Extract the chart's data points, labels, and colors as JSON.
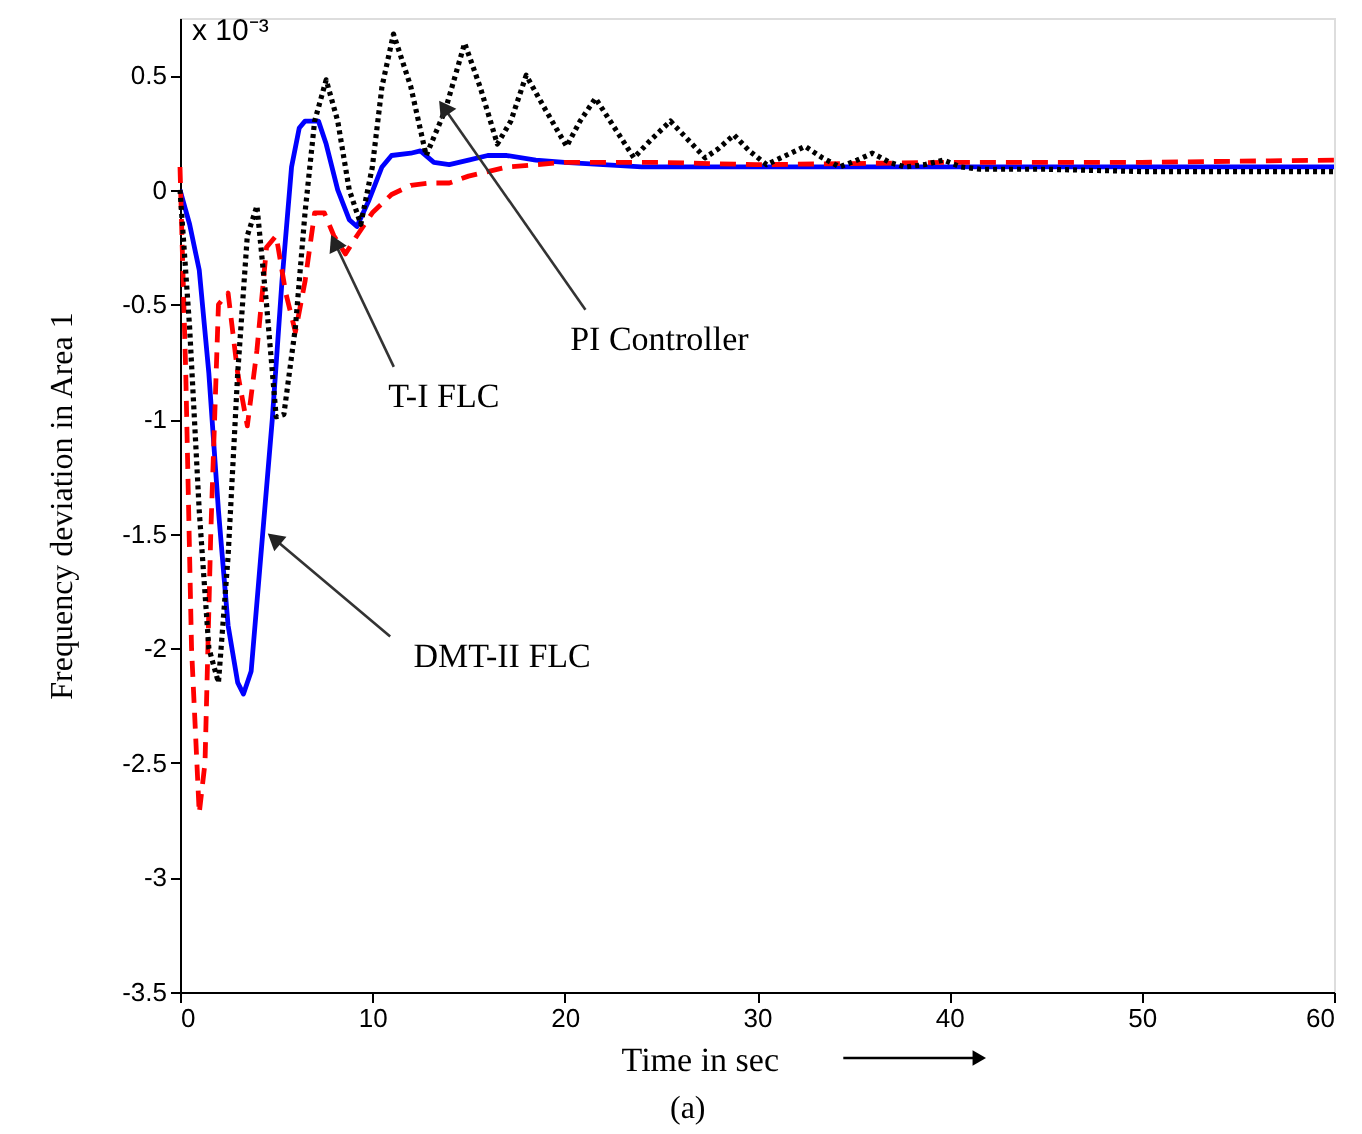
{
  "chart_data": {
    "type": "line",
    "xlabel": "Time in sec",
    "ylabel": "Frequency deviation in Area 1",
    "xlim": [
      0,
      60
    ],
    "xticks": [
      0,
      10,
      20,
      30,
      40,
      50,
      60
    ],
    "ylim": [
      -3.5,
      0.75
    ],
    "yticks": [
      -3.5,
      -3,
      -2.5,
      -2,
      -1.5,
      -1,
      -0.5,
      0,
      0.5
    ],
    "grid": false,
    "marker": "none",
    "series": [
      {
        "color": "#0000ff",
        "line_style": "solid",
        "x": [
          0,
          0.5,
          1,
          1.5,
          2,
          2.5,
          3,
          3.3,
          3.7,
          4.2,
          4.8,
          5.3,
          5.8,
          6.2,
          6.5,
          7.2,
          7.6,
          8.2,
          8.8,
          9.2,
          9.8,
          10.5,
          11,
          12,
          12.5,
          13.2,
          14,
          15,
          16,
          17,
          18.5,
          20,
          22,
          24,
          30,
          40,
          50,
          60
        ],
        "values": [
          0,
          -0.15,
          -0.35,
          -0.8,
          -1.4,
          -1.9,
          -2.15,
          -2.2,
          -2.1,
          -1.6,
          -1.0,
          -0.4,
          0.1,
          0.27,
          0.3,
          0.3,
          0.2,
          0.0,
          -0.13,
          -0.16,
          -0.05,
          0.1,
          0.15,
          0.16,
          0.17,
          0.12,
          0.11,
          0.13,
          0.15,
          0.15,
          0.13,
          0.12,
          0.11,
          0.1,
          0.1,
          0.1,
          0.1,
          0.1
        ]
      },
      {
        "color": "#ff0000",
        "line_style": "dashed",
        "x": [
          0,
          0.3,
          0.6,
          1,
          1.3,
          1.6,
          2,
          2.5,
          3,
          3.5,
          4,
          4.5,
          5,
          5.5,
          6,
          6.5,
          7,
          7.5,
          8,
          8.6,
          9.2,
          10,
          11,
          12,
          13,
          14,
          15,
          17,
          20,
          25,
          30,
          40,
          50,
          60
        ],
        "values": [
          0.1,
          -0.8,
          -2.0,
          -2.72,
          -2.5,
          -1.5,
          -0.5,
          -0.45,
          -0.8,
          -1.03,
          -0.7,
          -0.25,
          -0.2,
          -0.45,
          -0.62,
          -0.4,
          -0.1,
          -0.1,
          -0.2,
          -0.28,
          -0.2,
          -0.1,
          -0.02,
          0.02,
          0.03,
          0.03,
          0.06,
          0.1,
          0.12,
          0.12,
          0.11,
          0.12,
          0.12,
          0.13
        ]
      },
      {
        "color": "#000000",
        "line_style": "dotted",
        "x": [
          0,
          0.5,
          1,
          1.5,
          2,
          2.5,
          3,
          3.5,
          4,
          4.5,
          5,
          5.4,
          6,
          6.5,
          7,
          7.6,
          8.2,
          8.8,
          9.4,
          10,
          10.5,
          11.1,
          12,
          12.8,
          13.8,
          14.8,
          15.6,
          16.5,
          17.2,
          18,
          19,
          20.1,
          20.8,
          21.6,
          22.6,
          23.6,
          24.5,
          25.5,
          26.4,
          27.3,
          28,
          28.8,
          29.6,
          30.5,
          31.5,
          32.5,
          33.4,
          34.3,
          35.2,
          36,
          36.9,
          37.7,
          38.7,
          39.7,
          40.6,
          41.6,
          45,
          50,
          55,
          60
        ],
        "values": [
          0,
          -0.6,
          -1.4,
          -2.0,
          -2.15,
          -1.6,
          -0.8,
          -0.2,
          -0.07,
          -0.5,
          -0.99,
          -0.98,
          -0.6,
          -0.1,
          0.3,
          0.48,
          0.3,
          0.0,
          -0.15,
          0.1,
          0.45,
          0.68,
          0.45,
          0.15,
          0.35,
          0.64,
          0.45,
          0.2,
          0.3,
          0.5,
          0.35,
          0.19,
          0.3,
          0.4,
          0.27,
          0.14,
          0.22,
          0.3,
          0.22,
          0.14,
          0.18,
          0.24,
          0.17,
          0.11,
          0.15,
          0.19,
          0.14,
          0.1,
          0.13,
          0.16,
          0.12,
          0.1,
          0.11,
          0.13,
          0.1,
          0.09,
          0.09,
          0.08,
          0.08,
          0.08
        ]
      }
    ],
    "annotations": [
      "x 10⁻³",
      {
        "text": "DMT-II FLC",
        "x": 5.0,
        "y": -1.53
      },
      {
        "text": "T-I FLC",
        "x": 8.1,
        "y": -0.24
      },
      {
        "text": "PI Controller",
        "x": 13.8,
        "y": 0.35
      },
      "(a)"
    ]
  }
}
